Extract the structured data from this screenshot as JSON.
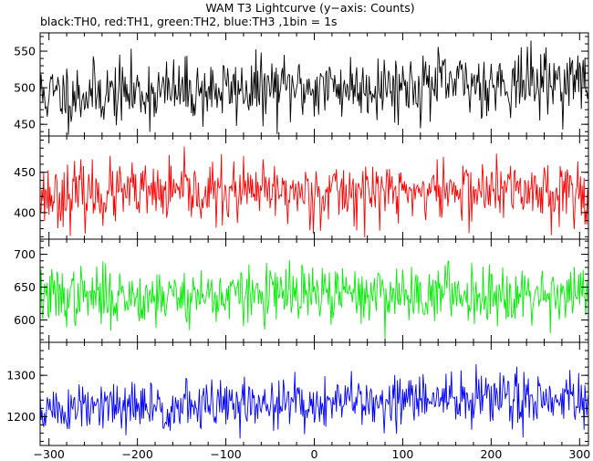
{
  "title": "WAM T3 Lightcurve (y−axis: Counts)",
  "subtitle": "black:TH0, red:TH1, green:TH2, blue:TH3 ,1bin = 1s",
  "chart_data": {
    "type": "line",
    "x_range": [
      -310,
      310
    ],
    "x_ticks": [
      -300,
      -200,
      -100,
      0,
      100,
      200,
      300
    ],
    "x_tick_labels": [
      "−300",
      "−200",
      "−100",
      "0",
      "100",
      "200",
      "300"
    ],
    "bin_seconds": 1,
    "series": [
      {
        "name": "TH0",
        "color": "#000000",
        "ylim": [
          434,
          575
        ],
        "y_ticks": [
          450,
          500,
          550
        ],
        "level_start": 490,
        "level_end": 510,
        "noise": 22,
        "seed": 11
      },
      {
        "name": "TH1",
        "color": "#ff0000",
        "ylim": [
          367,
          495
        ],
        "y_ticks": [
          400,
          450
        ],
        "level_start": 422,
        "level_end": 428,
        "noise": 19,
        "seed": 23
      },
      {
        "name": "TH2",
        "color": "#00ee00",
        "ylim": [
          566,
          723
        ],
        "y_ticks": [
          600,
          650,
          700
        ],
        "level_start": 635,
        "level_end": 642,
        "noise": 22,
        "seed": 37
      },
      {
        "name": "TH3",
        "color": "#0000ff",
        "ylim": [
          1130,
          1380
        ],
        "y_ticks": [
          1200,
          1300
        ],
        "level_start": 1215,
        "level_end": 1250,
        "noise": 32,
        "seed": 51
      }
    ]
  }
}
